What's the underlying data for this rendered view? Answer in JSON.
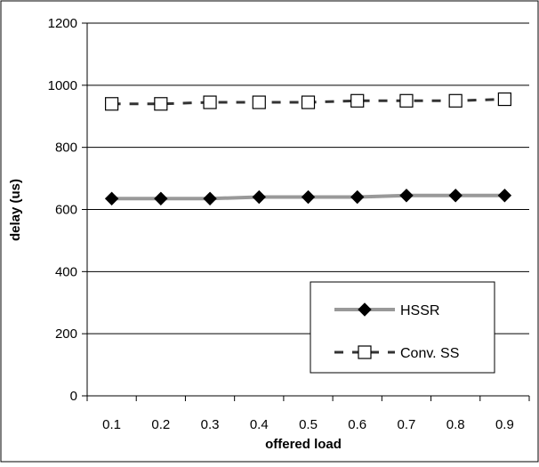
{
  "chart_data": {
    "type": "line",
    "title": "",
    "xlabel": "offered load",
    "ylabel": "delay (us)",
    "x": [
      0.1,
      0.2,
      0.3,
      0.4,
      0.5,
      0.6,
      0.7,
      0.8,
      0.9
    ],
    "x_tick_labels": [
      "0.1",
      "0.2",
      "0.3",
      "0.4",
      "0.5",
      "0.6",
      "0.7",
      "0.8",
      "0.9"
    ],
    "ylim": [
      0,
      1200
    ],
    "y_ticks": [
      0,
      200,
      400,
      600,
      800,
      1000,
      1200
    ],
    "y_tick_labels": [
      "0",
      "200",
      "400",
      "600",
      "800",
      "1000",
      "1200"
    ],
    "grid": "horizontal",
    "legend_position": "bottom-right",
    "series": [
      {
        "name": "HSSR",
        "values": [
          635,
          635,
          635,
          640,
          640,
          640,
          645,
          645,
          645
        ],
        "color": "#999999",
        "line_style": "solid",
        "marker": "diamond",
        "marker_color": "#000000"
      },
      {
        "name": "Conv. SS",
        "values": [
          940,
          940,
          945,
          945,
          945,
          950,
          950,
          950,
          955
        ],
        "color": "#333333",
        "line_style": "dashed",
        "marker": "square-open",
        "marker_color": "#000000"
      }
    ]
  }
}
